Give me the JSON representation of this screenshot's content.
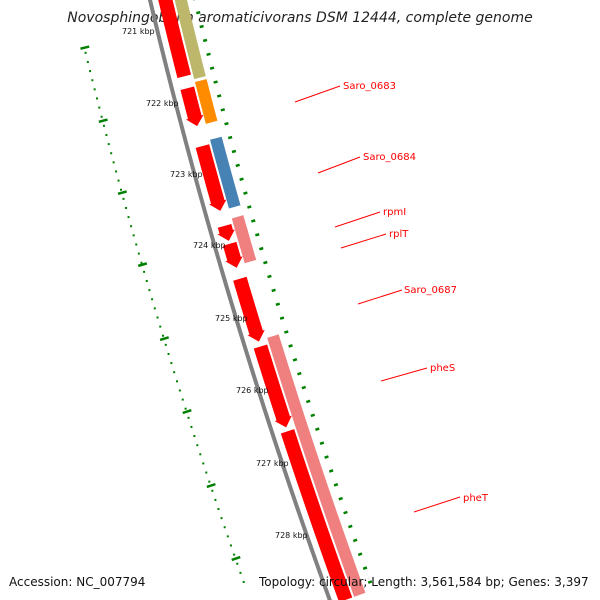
{
  "title": "Novosphingobium aromaticivorans DSM 12444, complete genome",
  "footer": {
    "accession": "Accession: NC_007794",
    "topology": "Topology: circular; Length: 3,561,584 bp; Genes: 3,397"
  },
  "ruler": {
    "ticks": [
      {
        "label": "721 kbp"
      },
      {
        "label": "722 kbp"
      },
      {
        "label": "723 kbp"
      },
      {
        "label": "724 kbp"
      },
      {
        "label": "725 kbp"
      },
      {
        "label": "726 kbp"
      },
      {
        "label": "727 kbp"
      },
      {
        "label": "728 kbp"
      }
    ]
  },
  "genes": [
    {
      "name": "Saro_0683",
      "color": "#ff8c00"
    },
    {
      "name": "Saro_0684",
      "color": "#4682b4"
    },
    {
      "name": "rpmI",
      "color": "#f08080"
    },
    {
      "name": "rplT",
      "color": "#f08080"
    },
    {
      "name": "Saro_0687",
      "color": "#ff0000"
    },
    {
      "name": "pheS",
      "color": "#f08080"
    },
    {
      "name": "pheT",
      "color": "#f08080"
    }
  ],
  "colors": {
    "cds": "#ff0000",
    "olive_feature": "#bdb76b",
    "backbone": "#808080",
    "ruler_tick": "#008000",
    "label": "#ff0000"
  }
}
